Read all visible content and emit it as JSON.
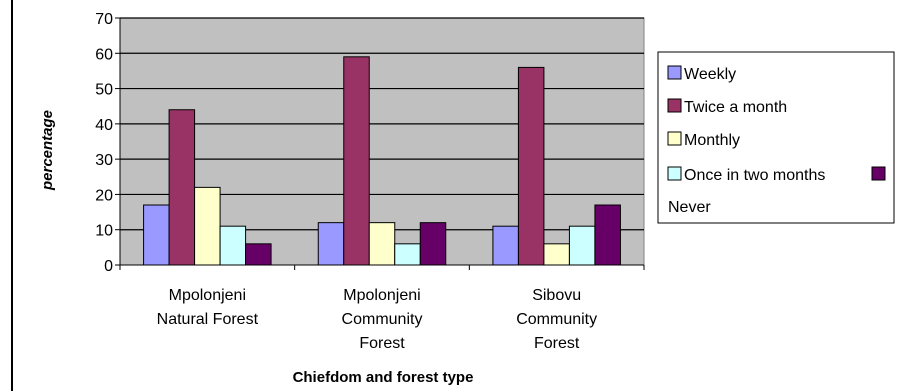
{
  "chart_data": {
    "type": "bar",
    "categories": [
      [
        "Mpolonjeni",
        "Natural Forest"
      ],
      [
        "Mpolonjeni",
        "Community",
        "Forest"
      ],
      [
        "Sibovu",
        "Community",
        "Forest"
      ]
    ],
    "series": [
      {
        "name": "Weekly",
        "values": [
          17,
          12,
          11
        ],
        "color": "#9999FF"
      },
      {
        "name": "Twice a month",
        "values": [
          44,
          59,
          56
        ],
        "color": "#993366"
      },
      {
        "name": "Monthly",
        "values": [
          22,
          12,
          6
        ],
        "color": "#FFFFCC"
      },
      {
        "name": "Once in two months",
        "values": [
          11,
          6,
          11
        ],
        "color": "#CCFFFF"
      },
      {
        "name": "Never",
        "values": [
          6,
          12,
          17
        ],
        "color": "#660066"
      }
    ],
    "xlabel": "Chiefdom and forest type",
    "ylabel": "percentage",
    "ylim": [
      0,
      70
    ],
    "yticks": [
      0,
      10,
      20,
      30,
      40,
      50,
      60,
      70
    ],
    "grid": true,
    "plot_background": "#C0C0C0",
    "legend_position": "right"
  }
}
